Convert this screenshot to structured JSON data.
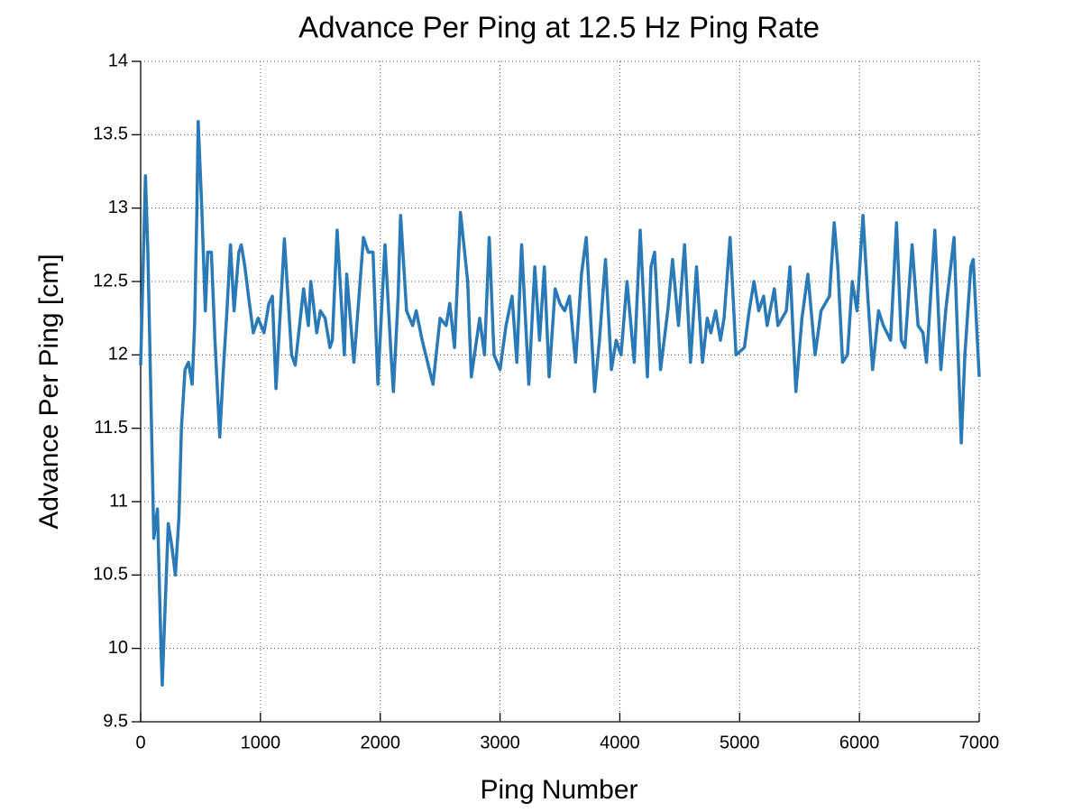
{
  "chart_data": {
    "type": "line",
    "title": "Advance Per Ping at 12.5 Hz Ping Rate",
    "x_label": "Ping Number",
    "y_label": "Advance Per Ping [cm]",
    "xlim": [
      0,
      7000
    ],
    "xticks": [
      0,
      1000,
      2000,
      3000,
      4000,
      5000,
      6000,
      7000
    ],
    "ylim": [
      9.5,
      14
    ],
    "yticks": [
      9.5,
      10,
      10.5,
      11,
      11.5,
      12,
      12.5,
      13,
      13.5,
      14
    ],
    "grid": true,
    "x": [
      0,
      40,
      60,
      110,
      140,
      170,
      180,
      230,
      260,
      290,
      320,
      340,
      370,
      400,
      430,
      450,
      470,
      480,
      510,
      540,
      560,
      590,
      620,
      660,
      690,
      720,
      750,
      780,
      820,
      840,
      870,
      900,
      940,
      980,
      1030,
      1070,
      1100,
      1130,
      1200,
      1260,
      1290,
      1360,
      1400,
      1420,
      1470,
      1500,
      1540,
      1580,
      1600,
      1640,
      1700,
      1720,
      1780,
      1800,
      1860,
      1900,
      1940,
      1980,
      2020,
      2040,
      2090,
      2110,
      2150,
      2170,
      2220,
      2270,
      2300,
      2350,
      2440,
      2500,
      2550,
      2580,
      2620,
      2670,
      2730,
      2760,
      2830,
      2870,
      2910,
      2950,
      3000,
      3050,
      3100,
      3140,
      3180,
      3240,
      3290,
      3330,
      3370,
      3410,
      3460,
      3500,
      3540,
      3580,
      3630,
      3680,
      3720,
      3790,
      3830,
      3880,
      3930,
      3970,
      4010,
      4060,
      4120,
      4170,
      4230,
      4260,
      4290,
      4340,
      4400,
      4440,
      4490,
      4540,
      4590,
      4640,
      4690,
      4730,
      4760,
      4800,
      4840,
      4870,
      4920,
      4970,
      5040,
      5080,
      5120,
      5160,
      5200,
      5230,
      5290,
      5320,
      5390,
      5420,
      5470,
      5520,
      5570,
      5630,
      5680,
      5750,
      5790,
      5820,
      5860,
      5900,
      5940,
      5980,
      6030,
      6070,
      6110,
      6160,
      6200,
      6260,
      6310,
      6350,
      6380,
      6440,
      6490,
      6530,
      6560,
      6630,
      6680,
      6720,
      6790,
      6850,
      6880,
      6930,
      6950,
      7000
    ],
    "series": [
      {
        "name": "Advance Per Ping",
        "color": "#2a7ab8",
        "values": [
          11.93,
          13.22,
          12.7,
          10.75,
          10.95,
          10.0,
          9.75,
          10.85,
          10.7,
          10.5,
          10.9,
          11.5,
          11.9,
          11.95,
          11.8,
          12.2,
          13.0,
          13.59,
          13.0,
          12.3,
          12.7,
          12.7,
          12.1,
          11.44,
          11.9,
          12.3,
          12.75,
          12.3,
          12.7,
          12.75,
          12.6,
          12.4,
          12.15,
          12.25,
          12.15,
          12.35,
          12.4,
          11.77,
          12.79,
          12.0,
          11.93,
          12.45,
          12.2,
          12.5,
          12.15,
          12.3,
          12.25,
          12.05,
          12.1,
          12.85,
          12.0,
          12.55,
          11.95,
          12.15,
          12.8,
          12.7,
          12.7,
          11.8,
          12.45,
          12.75,
          12.0,
          11.75,
          12.4,
          12.95,
          12.3,
          12.2,
          12.3,
          12.1,
          11.8,
          12.25,
          12.2,
          12.35,
          12.05,
          12.97,
          12.5,
          11.85,
          12.25,
          12.0,
          12.8,
          12.0,
          11.9,
          12.2,
          12.4,
          11.95,
          12.75,
          11.8,
          12.6,
          12.1,
          12.6,
          11.85,
          12.45,
          12.35,
          12.3,
          12.4,
          11.95,
          12.55,
          12.8,
          11.75,
          12.1,
          12.65,
          11.9,
          12.1,
          12.0,
          12.5,
          11.95,
          12.85,
          11.85,
          12.6,
          12.7,
          11.9,
          12.3,
          12.65,
          12.2,
          12.75,
          11.95,
          12.6,
          11.95,
          12.25,
          12.15,
          12.3,
          12.1,
          12.25,
          12.8,
          12.0,
          12.05,
          12.3,
          12.5,
          12.3,
          12.4,
          12.2,
          12.45,
          12.2,
          12.3,
          12.6,
          11.75,
          12.25,
          12.55,
          12.0,
          12.3,
          12.4,
          12.9,
          12.6,
          11.95,
          12.0,
          12.5,
          12.3,
          12.95,
          12.4,
          11.9,
          12.3,
          12.2,
          12.1,
          12.9,
          12.1,
          12.05,
          12.75,
          12.2,
          12.15,
          11.95,
          12.85,
          11.9,
          12.3,
          12.8,
          11.4,
          12.0,
          12.6,
          12.65,
          11.85
        ]
      }
    ]
  }
}
